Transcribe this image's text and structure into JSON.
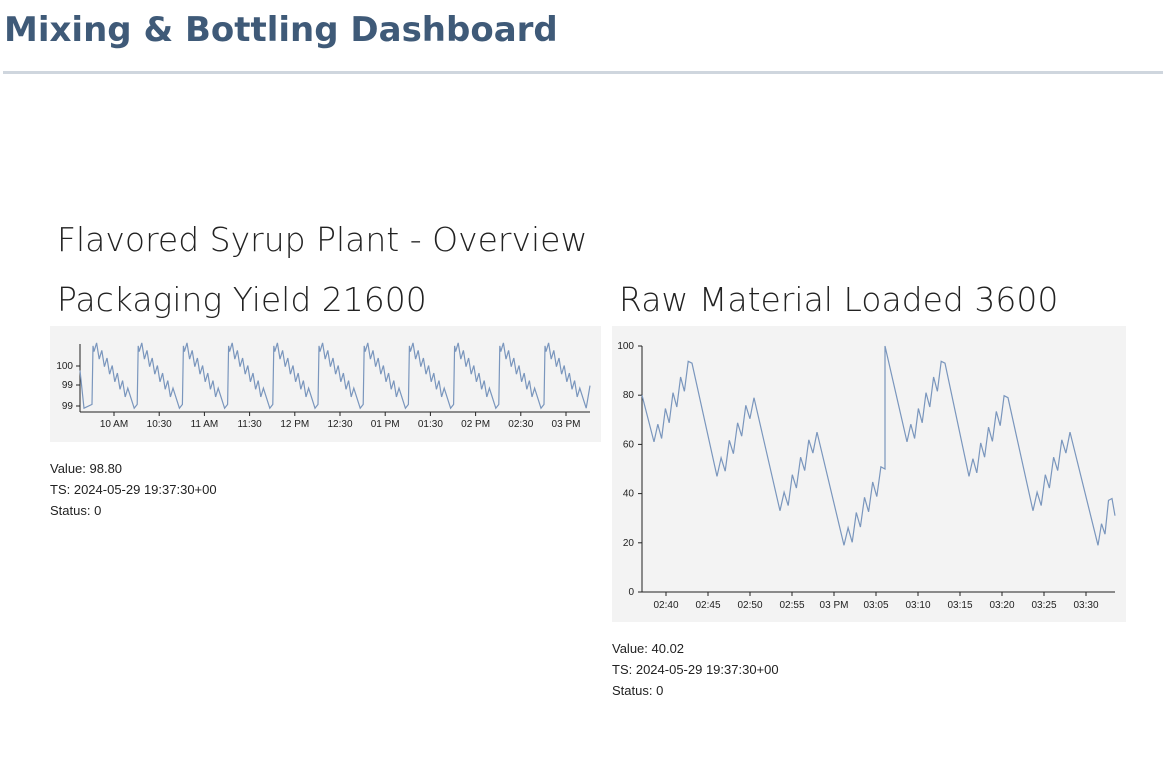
{
  "header": {
    "title": "Mixing & Bottling Dashboard"
  },
  "plant": {
    "title": "Flavored Syrup Plant - Overview"
  },
  "panels": [
    {
      "title": "Packaging Yield 21600",
      "value_text": "Value: 98.80",
      "ts_text": "TS: 2024-05-29 19:37:30+00",
      "status_text": "Status: 0",
      "line_color": "#7a96bd"
    },
    {
      "title": "Raw Material Loaded 3600",
      "value_text": "Value: 40.02",
      "ts_text": "TS: 2024-05-29 19:37:30+00",
      "status_text": "Status: 0",
      "line_color": "#7a96bd"
    }
  ],
  "chart_data": [
    {
      "type": "line",
      "x_ticks": [
        "10 AM",
        "10:30",
        "11 AM",
        "11:30",
        "12 PM",
        "12:30",
        "01 PM",
        "01:30",
        "02 PM",
        "02:30",
        "03 PM"
      ],
      "y_ticks": [
        "100",
        "99",
        "99"
      ],
      "ylim": [
        98.5,
        100.3
      ],
      "pattern": "sawtooth",
      "cycles": 11
    },
    {
      "type": "line",
      "x_ticks": [
        "02:40",
        "02:45",
        "02:50",
        "02:55",
        "03 PM",
        "03:05",
        "03:10",
        "03:15",
        "03:20",
        "03:25",
        "03:30"
      ],
      "y_ticks": [
        "0",
        "20",
        "40",
        "60",
        "80",
        "100"
      ],
      "ylim": [
        0,
        100
      ],
      "series": [
        {
          "values": [
            80,
            61,
            74,
            93,
            47,
            65,
            79,
            33,
            52,
            65,
            19,
            40,
            50,
            100,
            61,
            75,
            93,
            47,
            65,
            79,
            33,
            52,
            65,
            19,
            38,
            31
          ]
        }
      ]
    }
  ]
}
